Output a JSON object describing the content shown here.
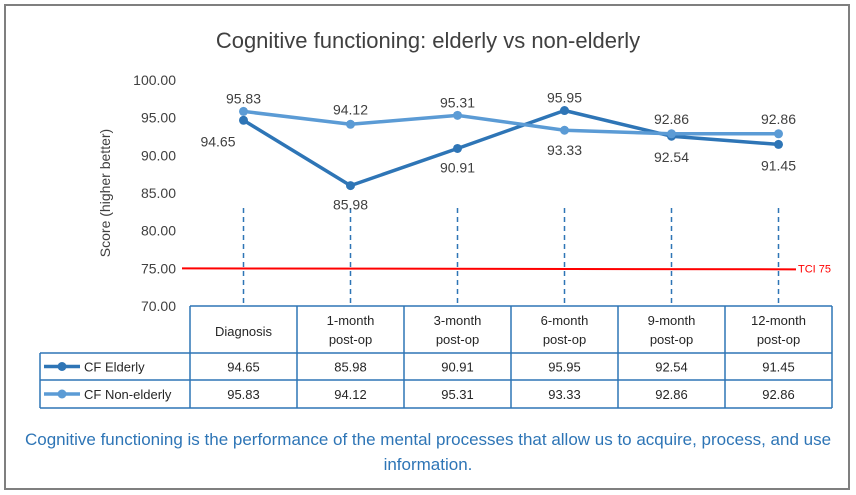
{
  "title": "Cognitive functioning: elderly vs non-elderly",
  "caption": "Cognitive functioning is the performance of the mental processes that allow us to acquire, process, and use information.",
  "chart_data": {
    "type": "line",
    "title": "Cognitive functioning: elderly vs non-elderly",
    "ylabel": "Score (higher better)",
    "xlabel": "",
    "ylim": [
      70,
      100
    ],
    "yticks": [
      "100.00",
      "95.00",
      "90.00",
      "85.00",
      "80.00",
      "75.00",
      "70.00"
    ],
    "ytick_values": [
      100,
      95,
      90,
      85,
      80,
      75,
      70
    ],
    "categories": [
      [
        "Diagnosis"
      ],
      [
        "1-month",
        "post-op"
      ],
      [
        "3-month",
        "post-op"
      ],
      [
        "6-month",
        "post-op"
      ],
      [
        "9-month",
        "post-op"
      ],
      [
        "12-month",
        "post-op"
      ]
    ],
    "series": [
      {
        "name": "CF Elderly",
        "color": "#2e75b6",
        "values": [
          94.65,
          85.98,
          90.91,
          95.95,
          92.54,
          91.45
        ],
        "labels": [
          "94.65",
          "85.98",
          "90.91",
          "95.95",
          "92.54",
          "91.45"
        ]
      },
      {
        "name": "CF Non-elderly",
        "color": "#5b9bd5",
        "values": [
          95.83,
          94.12,
          95.31,
          93.33,
          92.86,
          92.86
        ],
        "labels": [
          "95.83",
          "94.12",
          "95.31",
          "93.33",
          "92.86",
          "92.86"
        ]
      }
    ],
    "reference_line": {
      "value": 75,
      "label": "TCI 75",
      "color": "#ff0000"
    },
    "grid": false,
    "data_table": true,
    "gridline_color": "#2e75b6"
  }
}
